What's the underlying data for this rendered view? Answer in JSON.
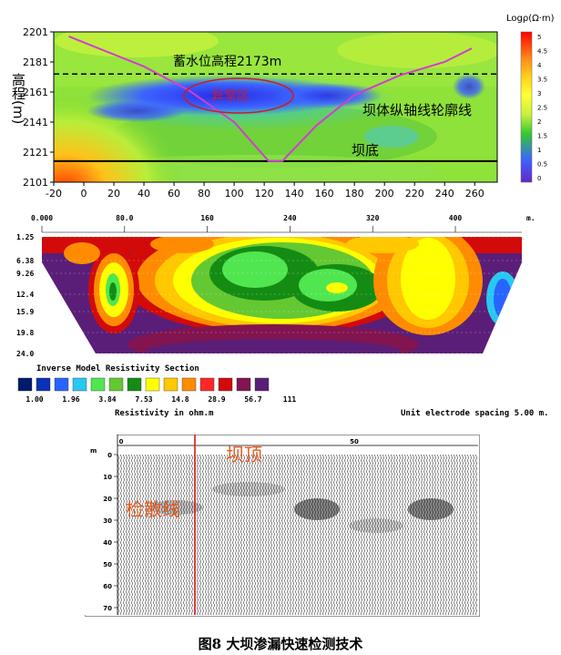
{
  "chart_data": [
    {
      "type": "heatmap",
      "title": "",
      "ylabel": "高程(m)",
      "xlabel": "",
      "xlim": [
        -20,
        275
      ],
      "ylim": [
        2101,
        2201
      ],
      "x_ticks": [
        -20,
        0,
        20,
        40,
        60,
        80,
        100,
        120,
        140,
        160,
        180,
        200,
        220,
        240,
        260
      ],
      "y_ticks": [
        2101,
        2121,
        2141,
        2161,
        2181,
        2201
      ],
      "colorbar": {
        "label": "Logρ(Ω·m)",
        "min": 0,
        "max": 5.5,
        "ticks": [
          "5",
          "4.5",
          "4",
          "3.5",
          "3",
          "2.5",
          "2",
          "1.5",
          "1",
          "0.5",
          "0"
        ],
        "colors": [
          "#ff0000",
          "#ff8c1a",
          "#ffd21a",
          "#ffff33",
          "#c8f03c",
          "#32c832",
          "#3c64ff",
          "#6428c8"
        ]
      },
      "reference_lines": [
        {
          "label": "蓄水位高程2173m",
          "y": 2173,
          "style": "dashed"
        },
        {
          "label": "坝底",
          "y": 2115,
          "style": "solid"
        }
      ],
      "annotations": {
        "anomaly": "异常区",
        "axis_line": "坝体纵轴线轮廓线"
      },
      "dam_profile": {
        "x": [
          -10,
          10,
          40,
          70,
          100,
          123,
          132,
          155,
          180,
          210,
          240,
          258
        ],
        "y": [
          2198,
          2190,
          2178,
          2162,
          2141,
          2115,
          2115,
          2139,
          2159,
          2172,
          2181,
          2190
        ]
      }
    },
    {
      "type": "heatmap",
      "title": "Inverse Model Resistivity Section",
      "xlabel": "",
      "x_unit": "m.",
      "x_ticks": [
        "0.000",
        "80.0",
        "160",
        "240",
        "320",
        "400"
      ],
      "depth_ticks": [
        "1.25",
        "6.38",
        "9.26",
        "12.4",
        "15.9",
        "19.8",
        "24.0"
      ],
      "legend_ticks": [
        "1.00",
        "1.96",
        "3.84",
        "7.53",
        "14.8",
        "28.9",
        "56.7",
        "111"
      ],
      "legend_colors": [
        "#001a6e",
        "#0a32b4",
        "#2864ff",
        "#28c8f0",
        "#50e650",
        "#64c832",
        "#148c14",
        "#ffff00",
        "#ffc800",
        "#ff8c00",
        "#ff2828",
        "#d20a0a",
        "#821450",
        "#5a1e78"
      ],
      "legend_title": "Resistivity in ohm.m",
      "footnote": "Unit electrode spacing 5.00 m."
    },
    {
      "type": "table",
      "title": "",
      "depth_ticks": [
        "0",
        "10",
        "20",
        "30",
        "40",
        "50",
        "60",
        "70"
      ],
      "depth_unit": "m",
      "x_ticks": [
        "0",
        "50"
      ],
      "annotations": {
        "dam_top": "坝顶",
        "check_line": "检散线"
      }
    }
  ],
  "caption": "图8  大坝渗漏快速检测技术"
}
